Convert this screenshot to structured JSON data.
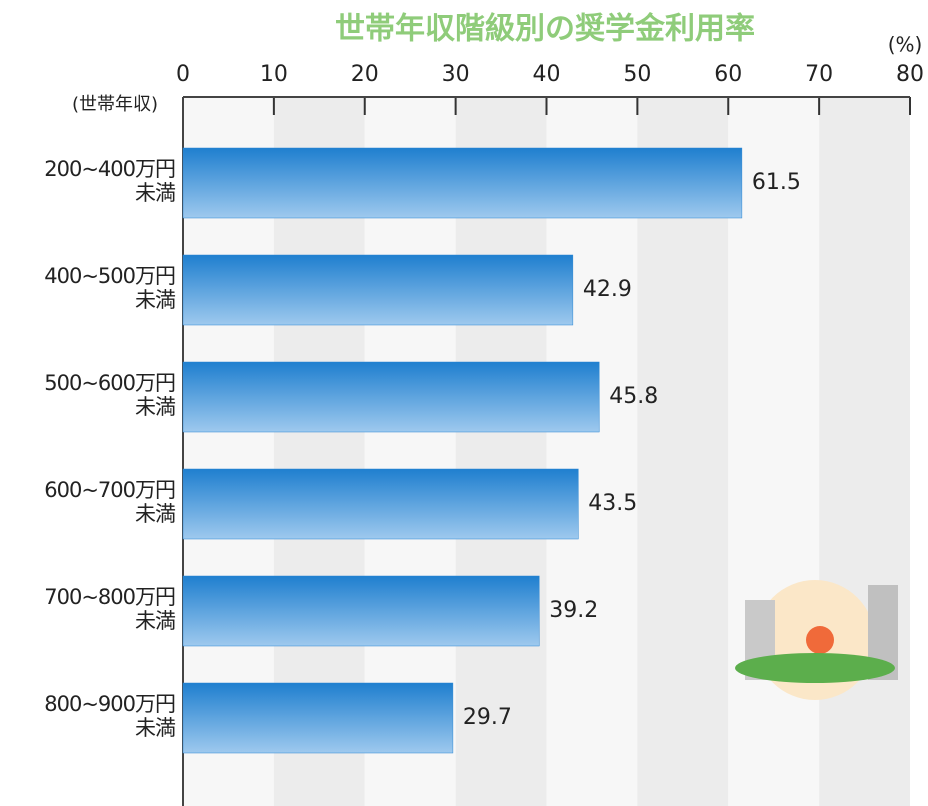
{
  "chart_data": {
    "type": "bar",
    "orientation": "horizontal",
    "title": "世帯年収階級別の奨学金利用率",
    "x_unit": "(%)",
    "y_label": "(世帯年収)",
    "categories": [
      "200~400万円\n未満",
      "400~500万円\n未満",
      "500~600万円\n未満",
      "600~700万円\n未満",
      "700~800万円\n未満",
      "800~900万円\n未満"
    ],
    "values": [
      61.5,
      42.9,
      45.8,
      43.5,
      39.2,
      29.7
    ],
    "color": "#2a86d2",
    "xlim": [
      0,
      80
    ],
    "xticks": [
      0,
      10,
      20,
      30,
      40,
      50,
      60,
      70,
      80
    ],
    "grid": true
  }
}
